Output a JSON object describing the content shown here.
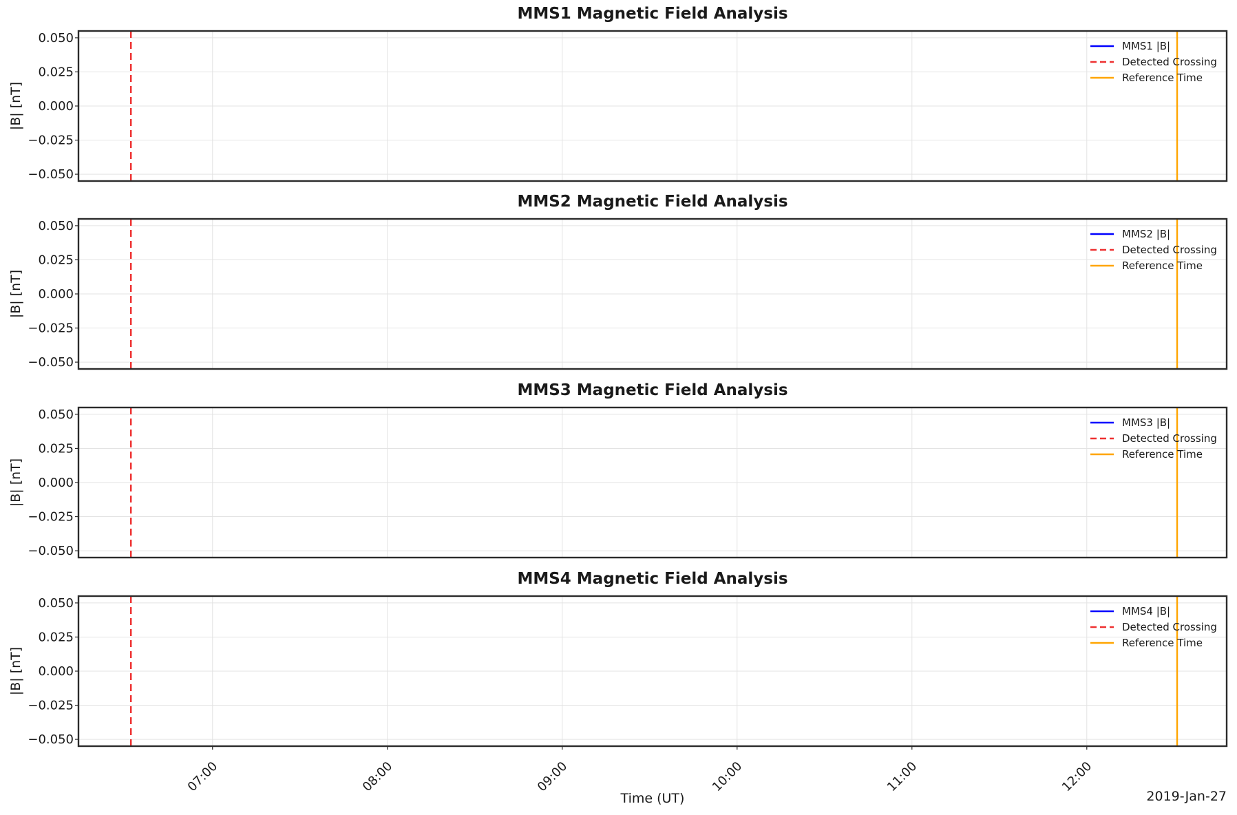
{
  "chart_data": {
    "type": "line",
    "panels": [
      {
        "title": "MMS1 Magnetic Field Analysis",
        "ylabel": "|B| [nT]",
        "ylim": [
          -0.055,
          0.055
        ],
        "yticks": [
          0.05,
          0.025,
          0.0,
          -0.025,
          -0.05
        ],
        "ytick_labels": [
          "0.050",
          "0.025",
          "0.000",
          "−0.025",
          "−0.050"
        ],
        "legend": [
          "MMS1 |B|",
          "Detected Crossing",
          "Reference Time"
        ],
        "series": [
          {
            "name": "MMS1 |B|",
            "values": []
          }
        ]
      },
      {
        "title": "MMS2 Magnetic Field Analysis",
        "ylabel": "|B| [nT]",
        "ylim": [
          -0.055,
          0.055
        ],
        "yticks": [
          0.05,
          0.025,
          0.0,
          -0.025,
          -0.05
        ],
        "ytick_labels": [
          "0.050",
          "0.025",
          "0.000",
          "−0.025",
          "−0.050"
        ],
        "legend": [
          "MMS2 |B|",
          "Detected Crossing",
          "Reference Time"
        ],
        "series": [
          {
            "name": "MMS2 |B|",
            "values": []
          }
        ]
      },
      {
        "title": "MMS3 Magnetic Field Analysis",
        "ylabel": "|B| [nT]",
        "ylim": [
          -0.055,
          0.055
        ],
        "yticks": [
          0.05,
          0.025,
          0.0,
          -0.025,
          -0.05
        ],
        "ytick_labels": [
          "0.050",
          "0.025",
          "0.000",
          "−0.025",
          "−0.050"
        ],
        "legend": [
          "MMS3 |B|",
          "Detected Crossing",
          "Reference Time"
        ],
        "series": [
          {
            "name": "MMS3 |B|",
            "values": []
          }
        ]
      },
      {
        "title": "MMS4 Magnetic Field Analysis",
        "ylabel": "|B| [nT]",
        "ylim": [
          -0.055,
          0.055
        ],
        "yticks": [
          0.05,
          0.025,
          0.0,
          -0.025,
          -0.05
        ],
        "ytick_labels": [
          "0.050",
          "0.025",
          "0.000",
          "−0.025",
          "−0.050"
        ],
        "legend": [
          "MMS4 |B|",
          "Detected Crossing",
          "Reference Time"
        ],
        "series": [
          {
            "name": "MMS4 |B|",
            "values": []
          }
        ]
      }
    ],
    "xlabel": "Time (UT)",
    "date_label": "2019-Jan-27",
    "xlim": [
      "06:14",
      "12:48"
    ],
    "xticks": [
      "07:00",
      "08:00",
      "09:00",
      "10:00",
      "11:00",
      "12:00"
    ],
    "detected_crossing_time": "06:32",
    "reference_time": "12:31",
    "grid": true,
    "legend_position": "upper right",
    "colors": {
      "series": "#0000ff",
      "detected_crossing": "#ee3030",
      "reference_time": "#ffa500",
      "grid": "#e3e3e3",
      "axes": "#2b2b2b"
    }
  }
}
